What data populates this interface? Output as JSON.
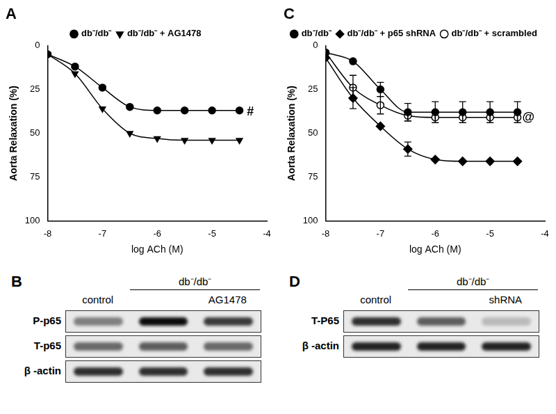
{
  "chart_data": [
    {
      "type": "line",
      "title": "A",
      "x": [
        -8,
        -7.5,
        -7,
        -6.5,
        -6,
        -5.5,
        -5,
        -4.5
      ],
      "series": [
        {
          "name": "db⁻/db⁻",
          "color": "#000000",
          "marker": "circle",
          "values": [
            5,
            12,
            24,
            35,
            37,
            37,
            37,
            37
          ]
        },
        {
          "name": "db⁻/db⁻ + AG1478",
          "color": "#000000",
          "marker": "triangle-down",
          "values": [
            5,
            16,
            36,
            50,
            53,
            54,
            54,
            54
          ]
        }
      ],
      "x_label": "log ACh (M)",
      "y_label": "Aorta Relaxation (%)",
      "xlim": [
        -8,
        -4
      ],
      "xticks": [
        -8,
        -7,
        -6,
        -5,
        -4
      ],
      "ylim": [
        100,
        0
      ],
      "yticks": [
        0,
        25,
        50,
        75,
        100
      ],
      "grid": false,
      "legend": "top",
      "annotations": [
        {
          "text": "#",
          "x": -4.3,
          "y": 38
        }
      ]
    },
    {
      "type": "line",
      "title": "C",
      "x": [
        -8,
        -7.5,
        -7,
        -6.5,
        -6,
        -5.5,
        -5,
        -4.5
      ],
      "series": [
        {
          "name": "db⁻/db⁻",
          "color": "#000000",
          "marker": "circle",
          "values": [
            4,
            9,
            25,
            38,
            38,
            38,
            38,
            38
          ],
          "errors": [
            null,
            null,
            4,
            5,
            6,
            6,
            6,
            6
          ]
        },
        {
          "name": "db⁻/db⁻ + p65 shRNA",
          "color": "#000000",
          "marker": "diamond",
          "values": [
            7,
            30,
            46,
            59,
            65,
            66,
            66,
            66
          ],
          "errors": [
            null,
            6,
            null,
            4,
            null,
            null,
            null,
            null
          ]
        },
        {
          "name": "db⁻/db⁻ + scrambled",
          "color": "#000000",
          "marker": "circle-open",
          "values": [
            4,
            24,
            34,
            40,
            41,
            41,
            41,
            41
          ],
          "errors": [
            null,
            7,
            5,
            3,
            3,
            3,
            3,
            3
          ]
        }
      ],
      "x_label": "log ACh (M)",
      "y_label": "Aorta Relaxation (%)",
      "xlim": [
        -8,
        -4
      ],
      "xticks": [
        -8,
        -7,
        -6,
        -5,
        -4
      ],
      "ylim": [
        100,
        0
      ],
      "yticks": [
        0,
        25,
        50,
        75,
        100
      ],
      "grid": false,
      "legend": "top",
      "annotations": [
        {
          "text": "@",
          "x": -4.3,
          "y": 41
        }
      ]
    }
  ],
  "blots": [
    {
      "label": "B",
      "group_label": "db⁻/db⁻",
      "lanes": [
        "control",
        null,
        "AG1478"
      ],
      "rows": [
        {
          "name": "P-p65",
          "intensity": [
            0.45,
            0.95,
            0.75
          ]
        },
        {
          "name": "T-p65",
          "intensity": [
            0.55,
            0.6,
            0.55
          ]
        },
        {
          "name": "β -actin",
          "intensity": [
            0.8,
            0.8,
            0.8
          ]
        }
      ]
    },
    {
      "label": "D",
      "group_label": "db⁻/db⁻",
      "lanes": [
        "control",
        null,
        "shRNA"
      ],
      "rows": [
        {
          "name": "T-P65",
          "intensity": [
            0.8,
            0.6,
            0.2
          ]
        },
        {
          "name": "β -actin",
          "intensity": [
            0.85,
            0.85,
            0.85
          ]
        }
      ]
    }
  ]
}
